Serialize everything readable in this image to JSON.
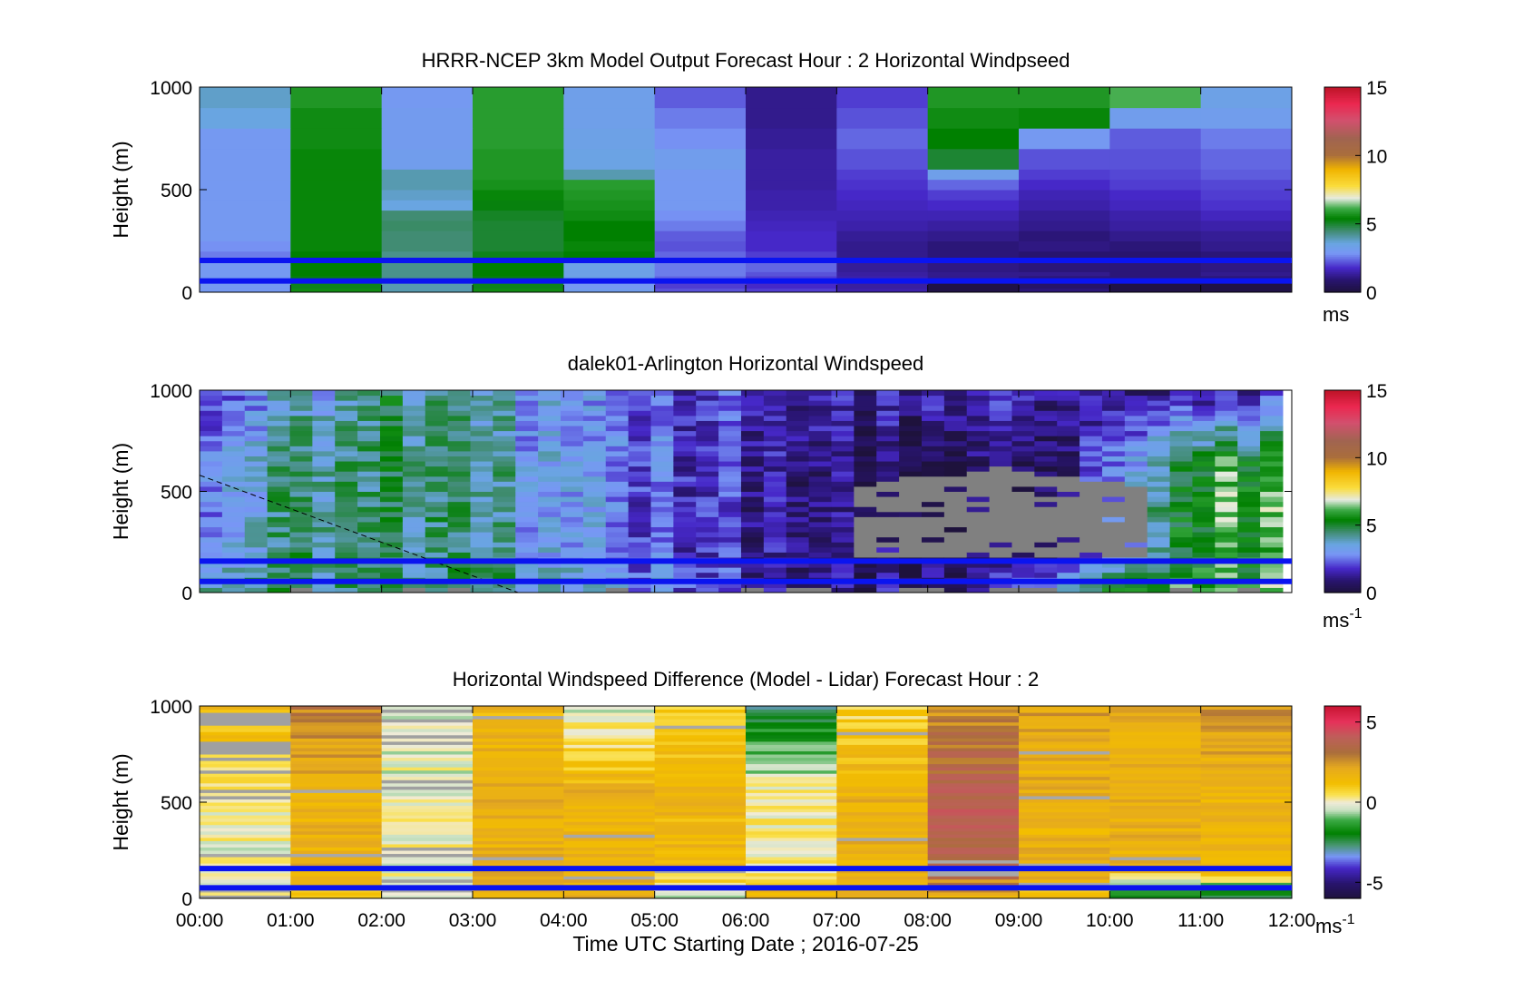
{
  "figure": {
    "xlabel": "Time UTC  Starting Date ; 2016-07-25",
    "x_tick_labels": [
      "00:00",
      "01:00",
      "02:00",
      "03:00",
      "04:00",
      "05:00",
      "06:00",
      "07:00",
      "08:00",
      "09:00",
      "10:00",
      "11:00",
      "12:00"
    ]
  },
  "chart_data": [
    {
      "type": "heatmap",
      "title": "HRRR-NCEP 3km Model Output   Forecast Hour : 2 Horizontal Windpseed",
      "ylabel": "Height (m)",
      "xlim_hours": [
        0,
        12
      ],
      "ylim": [
        0,
        1000
      ],
      "y_ticks": [
        0,
        500,
        1000
      ],
      "colorbar": {
        "ticks": [
          0,
          5,
          10,
          15
        ],
        "range": [
          0,
          15
        ],
        "unit": "ms",
        "unit_sup": ""
      },
      "reference_lines_m": [
        55,
        155
      ],
      "reference_line_color": "#0a14f0",
      "levels_m": [
        0,
        20,
        55,
        80,
        100,
        155,
        200,
        250,
        300,
        350,
        400,
        450,
        500,
        550,
        600,
        700,
        800,
        900,
        1000
      ],
      "time_hours": [
        0,
        1,
        2,
        3,
        4,
        5,
        6,
        7,
        8,
        9,
        10,
        11,
        12
      ],
      "values": [
        [
          3.0,
          5.6,
          4.0,
          5.6,
          3.2,
          2.2,
          2.0,
          1.5,
          0.2,
          1.0,
          0.2,
          0.2
        ],
        [
          3.0,
          5.2,
          4.0,
          5.2,
          3.0,
          2.0,
          1.8,
          1.4,
          0.2,
          0.8,
          0.2,
          0.2
        ],
        [
          3.0,
          5.3,
          4.3,
          5.3,
          3.4,
          2.4,
          2.0,
          1.5,
          1.2,
          1.0,
          1.0,
          1.0
        ],
        [
          3.0,
          5.4,
          4.3,
          5.4,
          3.4,
          2.6,
          2.2,
          1.4,
          1.2,
          1.2,
          1.0,
          1.2
        ],
        [
          3.0,
          5.4,
          4.3,
          5.4,
          3.4,
          2.6,
          2.4,
          1.3,
          1.1,
          1.0,
          1.0,
          1.1
        ],
        [
          2.6,
          5.4,
          4.3,
          5.2,
          5.4,
          2.4,
          2.0,
          1.2,
          1.0,
          0.9,
          0.9,
          1.0
        ],
        [
          2.8,
          5.5,
          4.5,
          5.0,
          5.5,
          2.2,
          1.8,
          1.2,
          1.0,
          1.1,
          1.0,
          1.2
        ],
        [
          3.0,
          5.5,
          4.5,
          5.0,
          5.4,
          2.3,
          1.8,
          1.3,
          1.2,
          1.0,
          1.2,
          1.3
        ],
        [
          3.0,
          5.5,
          4.6,
          5.0,
          5.4,
          2.6,
          1.7,
          1.5,
          1.4,
          1.2,
          1.4,
          1.5
        ],
        [
          3.0,
          5.5,
          4.5,
          5.1,
          5.6,
          2.8,
          1.6,
          1.6,
          1.6,
          1.3,
          1.5,
          1.7
        ],
        [
          3.0,
          5.5,
          3.6,
          5.3,
          5.7,
          3.0,
          1.5,
          1.7,
          1.8,
          1.5,
          1.7,
          1.9
        ],
        [
          3.0,
          5.5,
          3.8,
          5.5,
          5.8,
          3.0,
          1.5,
          1.8,
          2.0,
          1.6,
          1.8,
          2.0
        ],
        [
          3.0,
          5.5,
          4.0,
          5.7,
          5.9,
          3.0,
          1.4,
          1.9,
          2.4,
          1.8,
          2.0,
          2.1
        ],
        [
          3.0,
          5.5,
          4.0,
          5.8,
          4.0,
          3.0,
          1.4,
          2.0,
          3.3,
          2.0,
          2.1,
          2.3
        ],
        [
          3.0,
          5.5,
          3.2,
          5.8,
          3.5,
          3.2,
          1.4,
          2.2,
          5.0,
          2.2,
          2.2,
          2.4
        ],
        [
          3.0,
          5.6,
          3.1,
          5.9,
          3.4,
          2.8,
          1.3,
          2.4,
          5.4,
          3.0,
          2.3,
          2.6
        ],
        [
          3.6,
          5.6,
          3.1,
          5.9,
          3.3,
          2.6,
          1.2,
          2.2,
          5.6,
          5.5,
          3.2,
          3.2
        ],
        [
          3.8,
          5.8,
          3.0,
          5.9,
          3.3,
          2.3,
          1.2,
          2.0,
          5.8,
          5.8,
          6.2,
          3.4
        ]
      ]
    },
    {
      "type": "heatmap",
      "title": "dalek01-Arlington  Horizontal Windspeed",
      "ylabel": "Height (m)",
      "xlim_hours": [
        0,
        12
      ],
      "ylim": [
        0,
        1000
      ],
      "y_ticks": [
        0,
        500,
        1000
      ],
      "colorbar": {
        "ticks": [
          0,
          5,
          10,
          15
        ],
        "range": [
          0,
          15
        ],
        "unit": "ms",
        "unit_sup": "-1"
      },
      "reference_lines_m": [
        55,
        155
      ],
      "reference_line_color": "#0a14f0",
      "data_end_hour": 11.9,
      "grid_columns": 48,
      "grid_rows": 40,
      "dashed_line": {
        "from": [
          0,
          580
        ],
        "to": [
          3.5,
          0
        ]
      },
      "anchor_profiles": {
        "time_hours": [
          0,
          0.5,
          1,
          1.5,
          2,
          2.5,
          3,
          3.5,
          4,
          4.5,
          5,
          5.5,
          6,
          6.5,
          7,
          7.5,
          8,
          8.5,
          9,
          9.5,
          10,
          10.5,
          11,
          11.5,
          12
        ],
        "low_m_per_s": [
          4.5,
          5.0,
          5.2,
          4.8,
          4.0,
          4.6,
          5.0,
          4.0,
          3.6,
          3.2,
          3.0,
          2.6,
          1.5,
          1.0,
          0.8,
          1.0,
          1.0,
          1.2,
          2.5,
          4.8,
          5.6,
          6.0,
          6.2,
          6.0,
          6.0
        ],
        "mid_m_per_s": [
          3.0,
          4.0,
          4.5,
          4.6,
          4.2,
          4.8,
          4.2,
          3.4,
          3.0,
          2.8,
          2.4,
          2.2,
          1.4,
          0.8,
          0.6,
          0.6,
          0.6,
          0.6,
          0.8,
          1.4,
          2.4,
          4.5,
          5.5,
          5.8,
          5.8
        ],
        "high_m_per_s": [
          2.0,
          3.0,
          3.5,
          4.0,
          4.4,
          4.6,
          3.6,
          3.2,
          3.0,
          2.6,
          2.4,
          2.2,
          2.0,
          1.4,
          1.2,
          1.4,
          1.6,
          1.8,
          1.8,
          1.6,
          1.4,
          1.4,
          1.2,
          1.2,
          1.2
        ]
      },
      "missing_data_note": "grey blocks between ~07:00 and ~10:30 at 180–620 m"
    },
    {
      "type": "heatmap",
      "title": "Horizontal Windspeed Difference (Model - Lidar) Forecast Hour : 2",
      "ylabel": "Height (m)",
      "xlim_hours": [
        0,
        12
      ],
      "ylim": [
        0,
        1000
      ],
      "y_ticks": [
        0,
        500,
        1000
      ],
      "colorbar": {
        "ticks": [
          -5,
          0,
          5
        ],
        "range": [
          -6,
          6
        ],
        "unit": "ms",
        "unit_sup": "-1"
      },
      "reference_lines_m": [
        55,
        155
      ],
      "reference_line_color": "#0a14f0",
      "column_profiles": [
        {
          "hour_start": 0,
          "top": 1.6,
          "mid": 0.0,
          "low": 0.3
        },
        {
          "hour_start": 1,
          "top": 2.8,
          "mid": 1.8,
          "low": 0.8
        },
        {
          "hour_start": 2,
          "top": -0.5,
          "mid": 0.0,
          "low": 0.2
        },
        {
          "hour_start": 3,
          "top": 1.6,
          "mid": 1.8,
          "low": 2.0
        },
        {
          "hour_start": 4,
          "top": -0.4,
          "mid": 1.8,
          "low": 2.0
        },
        {
          "hour_start": 5,
          "top": 0.8,
          "mid": 1.6,
          "low": -0.6
        },
        {
          "hour_start": 6,
          "top": -2.4,
          "mid": 0.2,
          "low": 1.6
        },
        {
          "hour_start": 7,
          "top": 0.6,
          "mid": 1.8,
          "low": 1.6
        },
        {
          "hour_start": 8,
          "top": 2.6,
          "mid": 3.8,
          "low": 1.6
        },
        {
          "hour_start": 9,
          "top": 2.2,
          "mid": 1.8,
          "low": 1.4
        },
        {
          "hour_start": 10,
          "top": 2.0,
          "mid": 1.8,
          "low": -2.5
        },
        {
          "hour_start": 11,
          "top": 2.4,
          "mid": 1.8,
          "low": -2.8
        }
      ]
    }
  ]
}
